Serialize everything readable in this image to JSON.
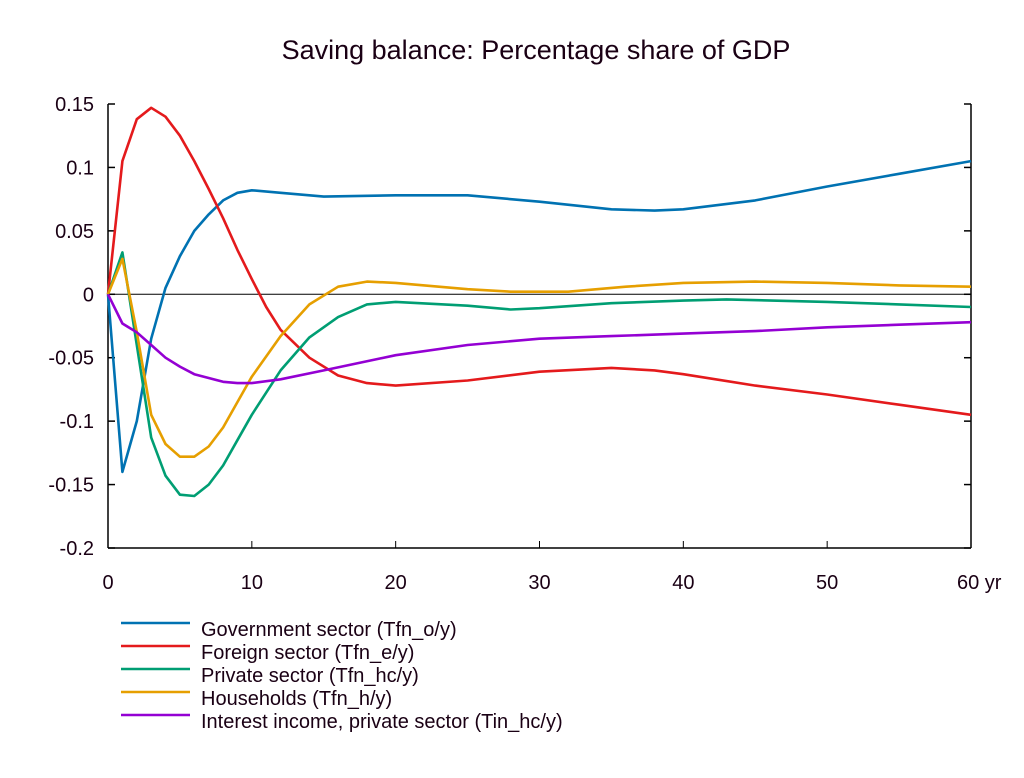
{
  "chart_data": {
    "type": "line",
    "title": "Saving balance: Percentage share of GDP",
    "xlabel": "",
    "ylabel": "",
    "x_unit_label": "yr",
    "xlim": [
      0,
      60
    ],
    "ylim": [
      -0.2,
      0.15
    ],
    "x_ticks": [
      0,
      10,
      20,
      30,
      40,
      50,
      60
    ],
    "x_tick_labels": [
      "0",
      "10",
      "20",
      "30",
      "40",
      "50",
      "60 yr"
    ],
    "y_ticks": [
      0.15,
      0.1,
      0.05,
      0,
      -0.05,
      -0.1,
      -0.15,
      -0.2
    ],
    "y_tick_labels": [
      "0.15",
      "0.1",
      "0.05",
      "0",
      "-0.05",
      "-0.1",
      "-0.15",
      "-0.2"
    ],
    "grid": false,
    "zero_line": true,
    "legend_position": "bottom-left",
    "series": [
      {
        "name": "Government sector (Tfn_o/y)",
        "color": "#0072b2",
        "x": [
          0,
          1,
          2,
          3,
          4,
          5,
          6,
          7,
          8,
          9,
          10,
          12,
          15,
          20,
          25,
          30,
          35,
          38,
          40,
          45,
          50,
          55,
          60
        ],
        "values": [
          0,
          -0.14,
          -0.1,
          -0.035,
          0.005,
          0.03,
          0.05,
          0.063,
          0.074,
          0.08,
          0.082,
          0.08,
          0.077,
          0.078,
          0.078,
          0.073,
          0.067,
          0.066,
          0.067,
          0.074,
          0.085,
          0.095,
          0.105
        ]
      },
      {
        "name": "Foreign sector (Tfn_e/y)",
        "color": "#e41a1c",
        "x": [
          0,
          1,
          2,
          3,
          4,
          5,
          6,
          7,
          8,
          9,
          10,
          11,
          12,
          14,
          16,
          18,
          20,
          25,
          30,
          35,
          38,
          40,
          45,
          50,
          55,
          60
        ],
        "values": [
          0,
          0.105,
          0.138,
          0.147,
          0.14,
          0.125,
          0.105,
          0.083,
          0.06,
          0.035,
          0.012,
          -0.01,
          -0.028,
          -0.05,
          -0.064,
          -0.07,
          -0.072,
          -0.068,
          -0.061,
          -0.058,
          -0.06,
          -0.063,
          -0.072,
          -0.079,
          -0.087,
          -0.095
        ]
      },
      {
        "name": "Private sector (Tfn_hc/y)",
        "color": "#009e73",
        "x": [
          0,
          1,
          2,
          3,
          4,
          5,
          6,
          7,
          8,
          9,
          10,
          12,
          14,
          16,
          18,
          20,
          25,
          28,
          30,
          35,
          40,
          43,
          50,
          55,
          60
        ],
        "values": [
          0,
          0.033,
          -0.04,
          -0.113,
          -0.143,
          -0.158,
          -0.159,
          -0.15,
          -0.135,
          -0.115,
          -0.095,
          -0.06,
          -0.034,
          -0.018,
          -0.008,
          -0.006,
          -0.009,
          -0.012,
          -0.011,
          -0.007,
          -0.005,
          -0.004,
          -0.006,
          -0.008,
          -0.01
        ]
      },
      {
        "name": "Households (Tfn_h/y)",
        "color": "#e69f00",
        "x": [
          0,
          1,
          2,
          3,
          4,
          5,
          6,
          7,
          8,
          9,
          10,
          12,
          14,
          16,
          18,
          20,
          25,
          28,
          32,
          36,
          40,
          45,
          50,
          55,
          60
        ],
        "values": [
          0,
          0.028,
          -0.03,
          -0.095,
          -0.118,
          -0.128,
          -0.128,
          -0.12,
          -0.105,
          -0.085,
          -0.065,
          -0.033,
          -0.008,
          0.006,
          0.01,
          0.009,
          0.004,
          0.002,
          0.002,
          0.006,
          0.009,
          0.01,
          0.009,
          0.007,
          0.006
        ]
      },
      {
        "name": "Interest income, private sector (Tin_hc/y)",
        "color": "#9400d3",
        "x": [
          0,
          1,
          2,
          3,
          4,
          5,
          6,
          7,
          8,
          9,
          10,
          12,
          15,
          20,
          25,
          30,
          35,
          40,
          45,
          50,
          55,
          60
        ],
        "values": [
          0,
          -0.023,
          -0.03,
          -0.04,
          -0.05,
          -0.057,
          -0.063,
          -0.066,
          -0.069,
          -0.07,
          -0.07,
          -0.067,
          -0.06,
          -0.048,
          -0.04,
          -0.035,
          -0.033,
          -0.031,
          -0.029,
          -0.026,
          -0.024,
          -0.022
        ]
      }
    ]
  }
}
